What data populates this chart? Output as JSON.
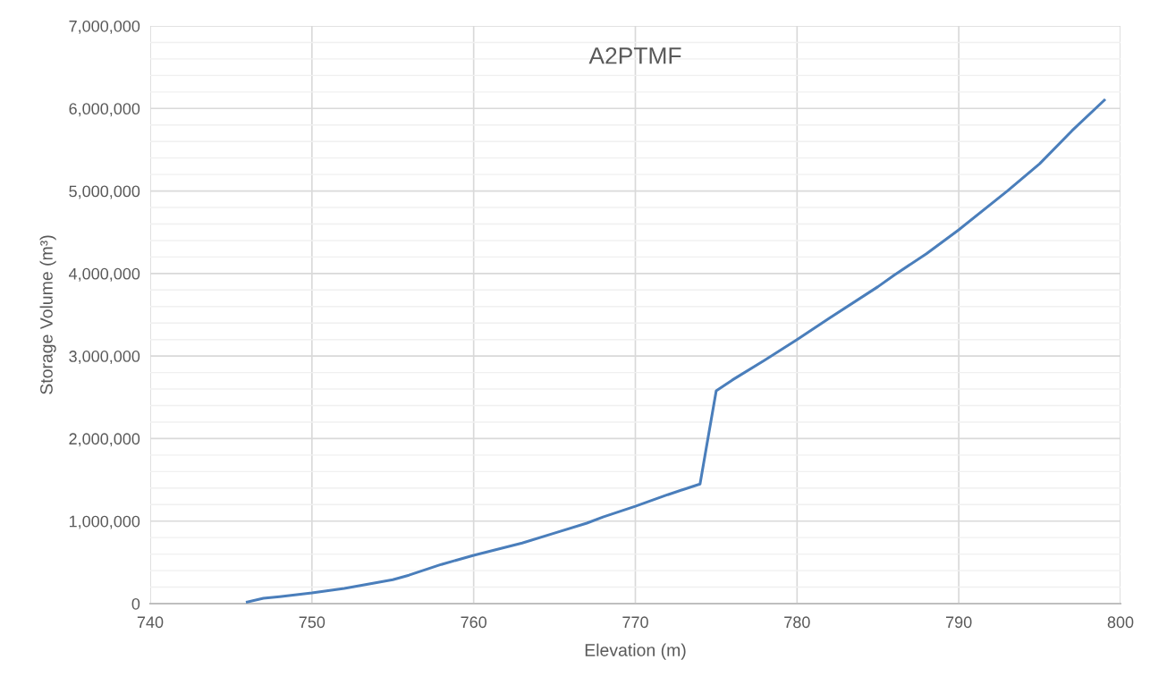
{
  "chart_data": {
    "type": "line",
    "title": "A2PTMF",
    "xlabel": "Elevation (m)",
    "ylabel": "Storage Volume (m³)",
    "x": [
      746,
      747,
      748,
      750,
      752,
      755,
      756,
      758,
      760,
      763,
      765,
      767,
      768,
      770,
      772,
      774,
      775,
      776,
      778,
      780,
      782,
      785,
      786,
      788,
      790,
      793,
      795,
      797,
      799
    ],
    "series": [
      {
        "color": "#4a7ebb",
        "values": [
          20000,
          65000,
          85000,
          130000,
          185000,
          290000,
          345000,
          475000,
          585000,
          735000,
          855000,
          975000,
          1050000,
          1180000,
          1320000,
          1450000,
          2580000,
          2710000,
          2950000,
          3200000,
          3460000,
          3840000,
          3980000,
          4240000,
          4530000,
          5000000,
          5330000,
          5730000,
          6100000
        ]
      }
    ],
    "xlim": [
      740,
      800
    ],
    "xticks": [
      740,
      750,
      760,
      770,
      780,
      790,
      800
    ],
    "ylim": [
      0,
      7000000
    ],
    "yticks": [
      {
        "value": 0,
        "label": "0"
      },
      {
        "value": 200000,
        "label": null
      },
      {
        "value": 400000,
        "label": null
      },
      {
        "value": 600000,
        "label": null
      },
      {
        "value": 800000,
        "label": null
      },
      {
        "value": 1000000,
        "label": "1,000,000"
      },
      {
        "value": 1200000,
        "label": null
      },
      {
        "value": 1400000,
        "label": null
      },
      {
        "value": 1600000,
        "label": null
      },
      {
        "value": 1800000,
        "label": null
      },
      {
        "value": 2000000,
        "label": "2,000,000"
      },
      {
        "value": 2200000,
        "label": null
      },
      {
        "value": 2400000,
        "label": null
      },
      {
        "value": 2600000,
        "label": null
      },
      {
        "value": 2800000,
        "label": null
      },
      {
        "value": 3000000,
        "label": "3,000,000"
      },
      {
        "value": 3200000,
        "label": null
      },
      {
        "value": 3400000,
        "label": null
      },
      {
        "value": 3600000,
        "label": null
      },
      {
        "value": 3800000,
        "label": null
      },
      {
        "value": 4000000,
        "label": "4,000,000"
      },
      {
        "value": 4200000,
        "label": null
      },
      {
        "value": 4400000,
        "label": null
      },
      {
        "value": 4600000,
        "label": null
      },
      {
        "value": 4800000,
        "label": null
      },
      {
        "value": 5000000,
        "label": "5,000,000"
      },
      {
        "value": 5200000,
        "label": null
      },
      {
        "value": 5400000,
        "label": null
      },
      {
        "value": 5600000,
        "label": null
      },
      {
        "value": 5800000,
        "label": null
      },
      {
        "value": 6000000,
        "label": "6,000,000"
      },
      {
        "value": 6200000,
        "label": null
      },
      {
        "value": 6400000,
        "label": null
      },
      {
        "value": 6600000,
        "label": null
      },
      {
        "value": 6800000,
        "label": null
      },
      {
        "value": 7000000,
        "label": "7,000,000"
      }
    ],
    "grid": true,
    "marker": "none",
    "line_style": "solid"
  }
}
